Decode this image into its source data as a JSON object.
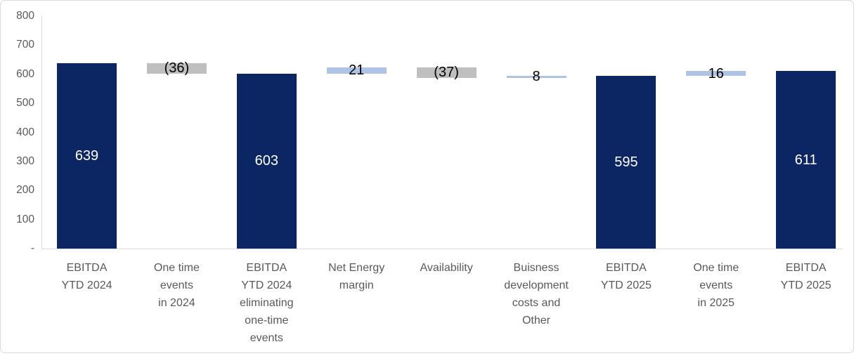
{
  "chart_data": {
    "type": "bar",
    "subtype": "waterfall",
    "title": "",
    "xlabel": "",
    "ylabel": "",
    "grid": false,
    "legend": null,
    "y_axis": {
      "range": [
        0,
        800
      ],
      "ticks": [
        {
          "value": 800,
          "label": "800"
        },
        {
          "value": 700,
          "label": "700"
        },
        {
          "value": 600,
          "label": "600"
        },
        {
          "value": 500,
          "label": "500"
        },
        {
          "value": 400,
          "label": "400"
        },
        {
          "value": 300,
          "label": "300"
        },
        {
          "value": 200,
          "label": "200"
        },
        {
          "value": 100,
          "label": "100"
        },
        {
          "value": 0,
          "label": "-"
        }
      ]
    },
    "columns": [
      {
        "label": "EBITDA YTD 2024",
        "label_lines": [
          "EBITDA",
          "YTD 2024"
        ],
        "kind": "total",
        "value": 639,
        "display": "639",
        "start": 0,
        "end": 639
      },
      {
        "label": "One time events in 2024",
        "label_lines": [
          "One time",
          "events",
          "in 2024"
        ],
        "kind": "decrease",
        "value": -36,
        "display": "(36)",
        "start": 639,
        "end": 603
      },
      {
        "label": "EBITDA YTD 2024 eliminating one-time events",
        "label_lines": [
          "EBITDA",
          "YTD 2024",
          "eliminating",
          "one-time",
          "events"
        ],
        "kind": "total",
        "value": 603,
        "display": "603",
        "start": 0,
        "end": 603
      },
      {
        "label": "Net Energy margin",
        "label_lines": [
          "Net Energy",
          "margin"
        ],
        "kind": "increase",
        "value": 21,
        "display": "21",
        "start": 603,
        "end": 624
      },
      {
        "label": "Availability",
        "label_lines": [
          "Availability"
        ],
        "kind": "decrease",
        "value": -37,
        "display": "(37)",
        "start": 624,
        "end": 587
      },
      {
        "label": "Buisness development costs and Other",
        "label_lines": [
          "Buisness",
          "development",
          "costs and",
          "Other"
        ],
        "kind": "increase",
        "value": 8,
        "display": "8",
        "start": 587,
        "end": 595
      },
      {
        "label": "EBITDA YTD 2025",
        "label_lines": [
          "EBITDA",
          "YTD 2025"
        ],
        "kind": "total",
        "value": 595,
        "display": "595",
        "start": 0,
        "end": 595
      },
      {
        "label": "One time events in 2025",
        "label_lines": [
          "One time",
          "events",
          "in 2025"
        ],
        "kind": "increase",
        "value": 16,
        "display": "16",
        "start": 595,
        "end": 611
      },
      {
        "label": "EBITDA YTD 2025",
        "label_lines": [
          "EBITDA",
          "YTD 2025"
        ],
        "kind": "total",
        "value": 611,
        "display": "611"
      }
    ],
    "colors": {
      "total_bar": "#0c2663",
      "increase_bar": "#afc3e4",
      "decrease_bar": "#bfbfbf",
      "value_text_on_total": "#ffffff",
      "value_text_on_float": "#000000",
      "axis_line": "#d9d9d9",
      "tick_text": "#595959",
      "category_text": "#595959",
      "frame_border": "#d9d9d9",
      "background": "#ffffff"
    }
  }
}
